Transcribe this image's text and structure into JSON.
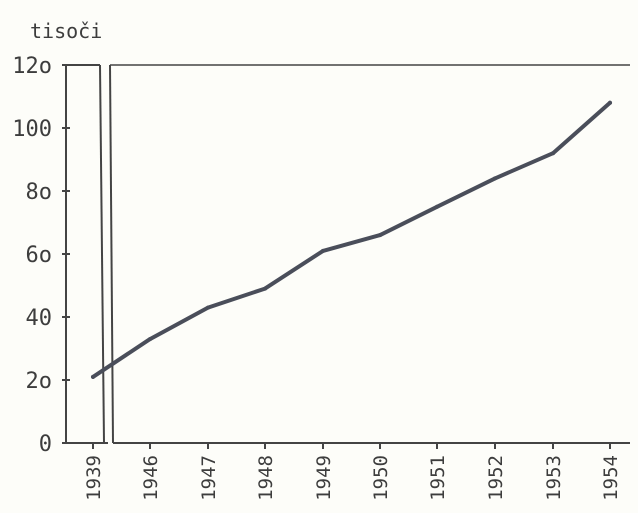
{
  "chart_data": {
    "type": "line",
    "unit_label": "tisoči",
    "x": [
      "1939",
      "1946",
      "1947",
      "1948",
      "1949",
      "1950",
      "1951",
      "1952",
      "1953",
      "1954"
    ],
    "series": [
      {
        "values": [
          21,
          33,
          43,
          49,
          61,
          66,
          75,
          84,
          92,
          108
        ]
      }
    ],
    "ylim": [
      0,
      120
    ],
    "yticks": [
      "0",
      "2o",
      "40",
      "6o",
      "8o",
      "100",
      "12o"
    ],
    "axis_break_after": "1939",
    "grid": false,
    "colors": {
      "line": "#4a4e5a",
      "axis": "#444444"
    }
  }
}
